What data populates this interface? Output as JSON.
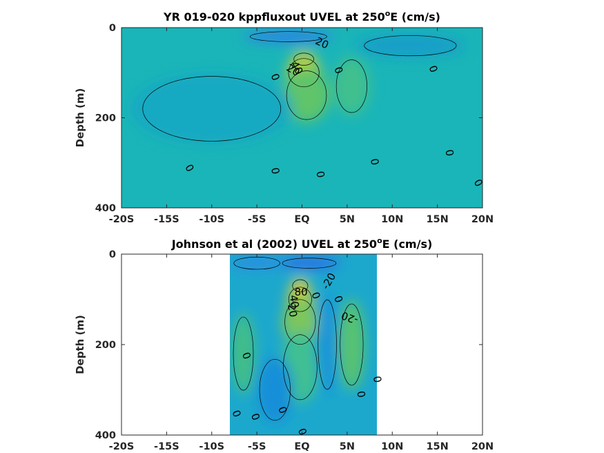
{
  "chart_data": [
    {
      "type": "heatmap",
      "title": "YR 019-020 kppfluxout UVEL at 250",
      "title_sup": "o",
      "title_suffix": "E (cm/s)",
      "ylabel": "Depth (m)",
      "xlabel": "",
      "xlim": [
        -20,
        20
      ],
      "ylim": [
        400,
        0
      ],
      "xticks": [
        -20,
        -15,
        -10,
        -5,
        0,
        5,
        10,
        15,
        20
      ],
      "xtick_labels": [
        "-20S",
        "-15S",
        "-10S",
        "-5S",
        "EQ",
        "5N",
        "10N",
        "15N",
        "20N"
      ],
      "yticks": [
        0,
        200,
        400
      ],
      "ytick_labels": [
        "0",
        "200",
        "400"
      ],
      "data_extent_x": [
        -20,
        20
      ],
      "background_color": "#1ab5b8",
      "features": [
        {
          "kind": "core",
          "lat": 0.2,
          "depth": 70,
          "value": 60,
          "width": 1.3,
          "thickness": 30,
          "color": "#f6cd36"
        },
        {
          "kind": "core",
          "lat": 0.2,
          "depth": 100,
          "value": 40,
          "width": 2.0,
          "thickness": 70,
          "color": "#a7cf43"
        },
        {
          "kind": "core",
          "lat": 0.5,
          "depth": 150,
          "value": 20,
          "width": 2.6,
          "thickness": 120,
          "color": "#5fc46a"
        },
        {
          "kind": "core",
          "lat": 5.5,
          "depth": 130,
          "value": 10,
          "width": 2.0,
          "thickness": 130,
          "color": "#3fc08e"
        },
        {
          "kind": "core",
          "lat": -1.5,
          "depth": 20,
          "value": -20,
          "width": 5.0,
          "thickness": 25,
          "color": "#2f7ee8"
        },
        {
          "kind": "core",
          "lat": 12,
          "depth": 40,
          "value": -5,
          "width": 6.0,
          "thickness": 50,
          "color": "#169ec9"
        },
        {
          "kind": "core",
          "lat": -10,
          "depth": 180,
          "value": -3,
          "width": 9.0,
          "thickness": 160,
          "color": "#16a9c2"
        }
      ],
      "contour_labels": [
        {
          "text": "20",
          "lat": 2.2,
          "depth": 35,
          "rotate": 25
        },
        {
          "text": "40",
          "lat": -0.6,
          "depth": 90,
          "rotate": 60
        },
        {
          "text": "20",
          "lat": -1.0,
          "depth": 95,
          "rotate": 30
        },
        {
          "text": "0",
          "lat": -3.0,
          "depth": 110,
          "rotate": 70
        },
        {
          "text": "0",
          "lat": 4.0,
          "depth": 95,
          "rotate": 70
        },
        {
          "text": "0",
          "lat": 14.5,
          "depth": 92,
          "rotate": 70
        },
        {
          "text": "0",
          "lat": -12.5,
          "depth": 312,
          "rotate": 60
        },
        {
          "text": "0",
          "lat": -3.0,
          "depth": 318,
          "rotate": 80
        },
        {
          "text": "0",
          "lat": 2.0,
          "depth": 326,
          "rotate": 80
        },
        {
          "text": "0",
          "lat": 8.0,
          "depth": 298,
          "rotate": 80
        },
        {
          "text": "0",
          "lat": 16.3,
          "depth": 278,
          "rotate": 80
        },
        {
          "text": "0",
          "lat": 19.5,
          "depth": 345,
          "rotate": 60
        }
      ]
    },
    {
      "type": "heatmap",
      "title": "Johnson et al (2002) UVEL at 250",
      "title_sup": "o",
      "title_suffix": "E (cm/s)",
      "ylabel": "Depth (m)",
      "xlabel": "",
      "xlim": [
        -20,
        20
      ],
      "ylim": [
        400,
        0
      ],
      "xticks": [
        -20,
        -15,
        -10,
        -5,
        0,
        5,
        10,
        15,
        20
      ],
      "xtick_labels": [
        "-20S",
        "-15S",
        "-10S",
        "-5S",
        "EQ",
        "5N",
        "10N",
        "15N",
        "20N"
      ],
      "yticks": [
        0,
        200,
        400
      ],
      "ytick_labels": [
        "0",
        "200",
        "400"
      ],
      "data_extent_x": [
        -8,
        8.3
      ],
      "background_color": "#1ca8cd",
      "features": [
        {
          "kind": "core",
          "lat": -0.2,
          "depth": 70,
          "value": 80,
          "width": 1.0,
          "thickness": 30,
          "color": "#fbd33a"
        },
        {
          "kind": "core",
          "lat": -0.2,
          "depth": 100,
          "value": 60,
          "width": 1.5,
          "thickness": 60,
          "color": "#c6ca3c"
        },
        {
          "kind": "core",
          "lat": -0.2,
          "depth": 150,
          "value": 40,
          "width": 2.0,
          "thickness": 110,
          "color": "#7dc65b"
        },
        {
          "kind": "core",
          "lat": -0.2,
          "depth": 250,
          "value": 20,
          "width": 2.2,
          "thickness": 160,
          "color": "#3fbf93"
        },
        {
          "kind": "core",
          "lat": -6.5,
          "depth": 220,
          "value": 10,
          "width": 1.3,
          "thickness": 180,
          "color": "#42be87"
        },
        {
          "kind": "core",
          "lat": 5.5,
          "depth": 200,
          "value": 10,
          "width": 1.5,
          "thickness": 200,
          "color": "#57c271"
        },
        {
          "kind": "core",
          "lat": 0.8,
          "depth": 20,
          "value": -20,
          "width": 3.5,
          "thickness": 25,
          "color": "#2d6be6"
        },
        {
          "kind": "core",
          "lat": -5.0,
          "depth": 20,
          "value": -10,
          "width": 3.0,
          "thickness": 30,
          "color": "#2a8ee0"
        },
        {
          "kind": "core",
          "lat": 2.8,
          "depth": 200,
          "value": -5,
          "width": 1.2,
          "thickness": 220,
          "color": "#1894d9"
        },
        {
          "kind": "core",
          "lat": -3.0,
          "depth": 300,
          "value": -5,
          "width": 2.0,
          "thickness": 150,
          "color": "#168fd8"
        }
      ],
      "contour_labels": [
        {
          "text": "80",
          "lat": -0.1,
          "depth": 85,
          "rotate": 0
        },
        {
          "text": "40",
          "lat": -0.9,
          "depth": 105,
          "rotate": 80
        },
        {
          "text": "20",
          "lat": -1.1,
          "depth": 125,
          "rotate": 80
        },
        {
          "text": "0",
          "lat": 1.5,
          "depth": 92,
          "rotate": 70
        },
        {
          "text": "-20",
          "lat": 3.0,
          "depth": 60,
          "rotate": -60
        },
        {
          "text": "0",
          "lat": 4.0,
          "depth": 100,
          "rotate": 70
        },
        {
          "text": "-20",
          "lat": 5.3,
          "depth": 140,
          "rotate": 200
        },
        {
          "text": "0",
          "lat": -6.2,
          "depth": 225,
          "rotate": 70
        },
        {
          "text": "0",
          "lat": 8.3,
          "depth": 277,
          "rotate": 80
        },
        {
          "text": "0",
          "lat": 6.5,
          "depth": 310,
          "rotate": 80
        },
        {
          "text": "0",
          "lat": -7.3,
          "depth": 353,
          "rotate": 70
        },
        {
          "text": "0",
          "lat": -5.2,
          "depth": 360,
          "rotate": 70
        },
        {
          "text": "0",
          "lat": -2.2,
          "depth": 345,
          "rotate": 70
        },
        {
          "text": "0",
          "lat": 0.0,
          "depth": 393,
          "rotate": 70
        }
      ]
    }
  ]
}
